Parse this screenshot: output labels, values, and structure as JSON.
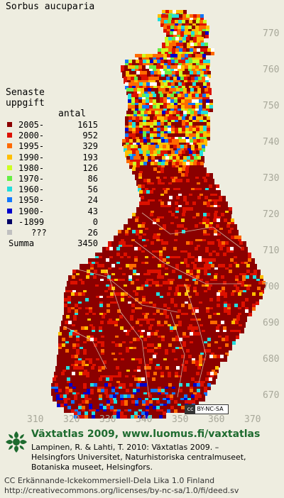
{
  "species": "Sorbus aucuparia",
  "legend": {
    "heading1": "Senaste",
    "heading2": "uppgift",
    "count_header": "antal",
    "rows": [
      {
        "label": "2005-",
        "count": "1615",
        "color": "#8b0000"
      },
      {
        "label": "2000-",
        "count": "952",
        "color": "#dd1100"
      },
      {
        "label": "1995-",
        "count": "329",
        "color": "#ff6a00"
      },
      {
        "label": "1990-",
        "count": "193",
        "color": "#ffbf00"
      },
      {
        "label": "1980-",
        "count": "126",
        "color": "#ccff22"
      },
      {
        "label": "1970-",
        "count": "86",
        "color": "#66ee44"
      },
      {
        "label": "1960-",
        "count": "56",
        "color": "#22dddd"
      },
      {
        "label": "1950-",
        "count": "24",
        "color": "#1177ff"
      },
      {
        "label": "1900-",
        "count": "43",
        "color": "#0000cc"
      },
      {
        "label": "-1899",
        "count": "0",
        "color": "#000066"
      },
      {
        "label": "???",
        "count": "26",
        "color": "#c0c0c0"
      }
    ],
    "total_label": "Summa",
    "total_count": "3450"
  },
  "y_ticks": [
    "770",
    "760",
    "750",
    "740",
    "730",
    "720",
    "710",
    "700",
    "690",
    "680",
    "670"
  ],
  "x_ticks": [
    "310",
    "320",
    "330",
    "340",
    "350",
    "360",
    "370"
  ],
  "cc_badge": {
    "cc": "cc",
    "text": "BY-NC-SA"
  },
  "footer": {
    "title": "Växtatlas 2009, www.luomus.fi/vaxtatlas",
    "line1": "Lampinen, R. & Lahti, T. 2010: Växtatlas 2009. –",
    "line2": "Helsingfors Universitet, Naturhistoriska centralmuseet,",
    "line3": "Botaniska museet, Helsingfors.",
    "license1": "CC Erkännande-Ickekommersiell-Dela Lika 1.0 Finland",
    "license2": "http://creativecommons.org/licenses/by-nc-sa/1.0/fi/deed.sv"
  }
}
